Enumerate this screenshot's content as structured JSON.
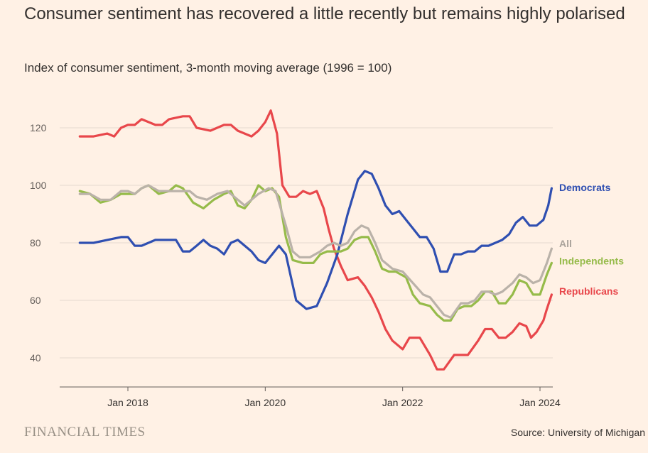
{
  "title": "Consumer sentiment has recovered a little recently but remains highly polarised",
  "subtitle": "Index of consumer sentiment, 3-month moving average (1996 = 100)",
  "brand": "FINANCIAL TIMES",
  "source": "Source: University of Michigan",
  "chart_data": {
    "type": "line",
    "xlabel": "",
    "ylabel": "",
    "xlim": [
      2017.0,
      2024.2
    ],
    "ylim": [
      30,
      128
    ],
    "yticks": [
      40,
      60,
      80,
      100,
      120
    ],
    "xticks": [
      {
        "value": 2018.0,
        "label": "Jan 2018"
      },
      {
        "value": 2020.0,
        "label": "Jan 2020"
      },
      {
        "value": 2022.0,
        "label": "Jan 2022"
      },
      {
        "value": 2024.0,
        "label": "Jan 2024"
      }
    ],
    "grid": "horizontal",
    "legend": "right, labels at line ends",
    "series": [
      {
        "name": "Republicans",
        "color": "#e8474b",
        "points": [
          [
            2017.3,
            117
          ],
          [
            2017.5,
            117
          ],
          [
            2017.7,
            118
          ],
          [
            2017.8,
            117
          ],
          [
            2017.9,
            120
          ],
          [
            2018.0,
            121
          ],
          [
            2018.1,
            121
          ],
          [
            2018.2,
            123
          ],
          [
            2018.4,
            121
          ],
          [
            2018.5,
            121
          ],
          [
            2018.6,
            123
          ],
          [
            2018.8,
            124
          ],
          [
            2018.9,
            124
          ],
          [
            2019.0,
            120
          ],
          [
            2019.2,
            119
          ],
          [
            2019.4,
            121
          ],
          [
            2019.5,
            121
          ],
          [
            2019.6,
            119
          ],
          [
            2019.8,
            117
          ],
          [
            2019.9,
            119
          ],
          [
            2020.0,
            122
          ],
          [
            2020.08,
            126
          ],
          [
            2020.17,
            118
          ],
          [
            2020.25,
            100
          ],
          [
            2020.35,
            96
          ],
          [
            2020.45,
            96
          ],
          [
            2020.55,
            98
          ],
          [
            2020.65,
            97
          ],
          [
            2020.75,
            98
          ],
          [
            2020.85,
            92
          ],
          [
            2020.92,
            85
          ],
          [
            2021.0,
            78
          ],
          [
            2021.1,
            72
          ],
          [
            2021.2,
            67
          ],
          [
            2021.35,
            68
          ],
          [
            2021.45,
            65
          ],
          [
            2021.55,
            61
          ],
          [
            2021.65,
            56
          ],
          [
            2021.75,
            50
          ],
          [
            2021.85,
            46
          ],
          [
            2022.0,
            43
          ],
          [
            2022.1,
            47
          ],
          [
            2022.25,
            47
          ],
          [
            2022.4,
            41
          ],
          [
            2022.5,
            36
          ],
          [
            2022.6,
            36
          ],
          [
            2022.75,
            41
          ],
          [
            2022.95,
            41
          ],
          [
            2023.1,
            46
          ],
          [
            2023.2,
            50
          ],
          [
            2023.3,
            50
          ],
          [
            2023.4,
            47
          ],
          [
            2023.5,
            47
          ],
          [
            2023.6,
            49
          ],
          [
            2023.7,
            52
          ],
          [
            2023.8,
            51
          ],
          [
            2023.87,
            47
          ],
          [
            2023.95,
            49
          ],
          [
            2024.05,
            53
          ],
          [
            2024.1,
            57
          ],
          [
            2024.17,
            62
          ]
        ]
      },
      {
        "name": "Democrats",
        "color": "#2f4fb1",
        "points": [
          [
            2017.3,
            80
          ],
          [
            2017.4,
            80
          ],
          [
            2017.5,
            80
          ],
          [
            2017.7,
            81
          ],
          [
            2017.9,
            82
          ],
          [
            2018.0,
            82
          ],
          [
            2018.1,
            79
          ],
          [
            2018.2,
            79
          ],
          [
            2018.4,
            81
          ],
          [
            2018.6,
            81
          ],
          [
            2018.7,
            81
          ],
          [
            2018.8,
            77
          ],
          [
            2018.9,
            77
          ],
          [
            2019.0,
            79
          ],
          [
            2019.1,
            81
          ],
          [
            2019.2,
            79
          ],
          [
            2019.3,
            78
          ],
          [
            2019.4,
            76
          ],
          [
            2019.5,
            80
          ],
          [
            2019.6,
            81
          ],
          [
            2019.8,
            77
          ],
          [
            2019.9,
            74
          ],
          [
            2020.0,
            73
          ],
          [
            2020.1,
            76
          ],
          [
            2020.2,
            79
          ],
          [
            2020.3,
            76
          ],
          [
            2020.45,
            60
          ],
          [
            2020.6,
            57
          ],
          [
            2020.75,
            58
          ],
          [
            2020.9,
            66
          ],
          [
            2021.05,
            76
          ],
          [
            2021.2,
            90
          ],
          [
            2021.35,
            102
          ],
          [
            2021.45,
            105
          ],
          [
            2021.55,
            104
          ],
          [
            2021.65,
            99
          ],
          [
            2021.75,
            93
          ],
          [
            2021.85,
            90
          ],
          [
            2021.95,
            91
          ],
          [
            2022.05,
            88
          ],
          [
            2022.15,
            85
          ],
          [
            2022.25,
            82
          ],
          [
            2022.35,
            82
          ],
          [
            2022.45,
            78
          ],
          [
            2022.55,
            70
          ],
          [
            2022.65,
            70
          ],
          [
            2022.75,
            76
          ],
          [
            2022.85,
            76
          ],
          [
            2022.95,
            77
          ],
          [
            2023.05,
            77
          ],
          [
            2023.15,
            79
          ],
          [
            2023.25,
            79
          ],
          [
            2023.35,
            80
          ],
          [
            2023.45,
            81
          ],
          [
            2023.55,
            83
          ],
          [
            2023.65,
            87
          ],
          [
            2023.75,
            89
          ],
          [
            2023.85,
            86
          ],
          [
            2023.95,
            86
          ],
          [
            2024.05,
            88
          ],
          [
            2024.12,
            93
          ],
          [
            2024.17,
            99
          ]
        ]
      },
      {
        "name": "All",
        "color": "#bab2a9",
        "points": [
          [
            2017.3,
            97
          ],
          [
            2017.45,
            97
          ],
          [
            2017.6,
            95
          ],
          [
            2017.75,
            95
          ],
          [
            2017.9,
            98
          ],
          [
            2018.0,
            98
          ],
          [
            2018.1,
            97
          ],
          [
            2018.2,
            99
          ],
          [
            2018.3,
            100
          ],
          [
            2018.45,
            98
          ],
          [
            2018.6,
            98
          ],
          [
            2018.75,
            98
          ],
          [
            2018.9,
            98
          ],
          [
            2019.0,
            96
          ],
          [
            2019.15,
            95
          ],
          [
            2019.3,
            97
          ],
          [
            2019.45,
            98
          ],
          [
            2019.55,
            96
          ],
          [
            2019.7,
            93
          ],
          [
            2019.8,
            95
          ],
          [
            2019.9,
            97
          ],
          [
            2020.05,
            99
          ],
          [
            2020.15,
            98
          ],
          [
            2020.3,
            86
          ],
          [
            2020.4,
            77
          ],
          [
            2020.5,
            75
          ],
          [
            2020.65,
            75
          ],
          [
            2020.8,
            77
          ],
          [
            2020.9,
            79
          ],
          [
            2021.0,
            80
          ],
          [
            2021.1,
            79
          ],
          [
            2021.2,
            80
          ],
          [
            2021.3,
            84
          ],
          [
            2021.4,
            86
          ],
          [
            2021.5,
            85
          ],
          [
            2021.6,
            80
          ],
          [
            2021.7,
            74
          ],
          [
            2021.85,
            71
          ],
          [
            2022.0,
            70
          ],
          [
            2022.15,
            66
          ],
          [
            2022.3,
            62
          ],
          [
            2022.4,
            61
          ],
          [
            2022.5,
            58
          ],
          [
            2022.6,
            55
          ],
          [
            2022.7,
            54
          ],
          [
            2022.85,
            59
          ],
          [
            2022.95,
            59
          ],
          [
            2023.05,
            60
          ],
          [
            2023.15,
            63
          ],
          [
            2023.25,
            63
          ],
          [
            2023.35,
            62
          ],
          [
            2023.45,
            63
          ],
          [
            2023.6,
            66
          ],
          [
            2023.7,
            69
          ],
          [
            2023.8,
            68
          ],
          [
            2023.9,
            66
          ],
          [
            2024.0,
            67
          ],
          [
            2024.1,
            73
          ],
          [
            2024.17,
            78
          ]
        ]
      },
      {
        "name": "Independents",
        "color": "#96bb4a",
        "points": [
          [
            2017.3,
            98
          ],
          [
            2017.45,
            97
          ],
          [
            2017.6,
            94
          ],
          [
            2017.75,
            95
          ],
          [
            2017.9,
            97
          ],
          [
            2018.0,
            97
          ],
          [
            2018.1,
            97
          ],
          [
            2018.2,
            99
          ],
          [
            2018.3,
            100
          ],
          [
            2018.45,
            97
          ],
          [
            2018.6,
            98
          ],
          [
            2018.7,
            100
          ],
          [
            2018.8,
            99
          ],
          [
            2018.95,
            94
          ],
          [
            2019.1,
            92
          ],
          [
            2019.25,
            95
          ],
          [
            2019.4,
            97
          ],
          [
            2019.5,
            98
          ],
          [
            2019.6,
            93
          ],
          [
            2019.7,
            92
          ],
          [
            2019.8,
            95
          ],
          [
            2019.9,
            100
          ],
          [
            2020.0,
            98
          ],
          [
            2020.1,
            99
          ],
          [
            2020.2,
            96
          ],
          [
            2020.3,
            82
          ],
          [
            2020.4,
            74
          ],
          [
            2020.55,
            73
          ],
          [
            2020.7,
            73
          ],
          [
            2020.8,
            76
          ],
          [
            2020.9,
            77
          ],
          [
            2021.0,
            77
          ],
          [
            2021.1,
            77
          ],
          [
            2021.2,
            78
          ],
          [
            2021.3,
            81
          ],
          [
            2021.4,
            82
          ],
          [
            2021.5,
            82
          ],
          [
            2021.6,
            77
          ],
          [
            2021.7,
            71
          ],
          [
            2021.8,
            70
          ],
          [
            2021.9,
            70
          ],
          [
            2022.05,
            68
          ],
          [
            2022.15,
            62
          ],
          [
            2022.25,
            59
          ],
          [
            2022.4,
            58
          ],
          [
            2022.5,
            55
          ],
          [
            2022.6,
            53
          ],
          [
            2022.7,
            53
          ],
          [
            2022.8,
            57
          ],
          [
            2022.9,
            58
          ],
          [
            2023.0,
            58
          ],
          [
            2023.1,
            60
          ],
          [
            2023.2,
            63
          ],
          [
            2023.3,
            63
          ],
          [
            2023.4,
            59
          ],
          [
            2023.5,
            59
          ],
          [
            2023.6,
            62
          ],
          [
            2023.7,
            67
          ],
          [
            2023.8,
            66
          ],
          [
            2023.9,
            62
          ],
          [
            2024.0,
            62
          ],
          [
            2024.1,
            69
          ],
          [
            2024.17,
            73
          ]
        ]
      }
    ]
  }
}
